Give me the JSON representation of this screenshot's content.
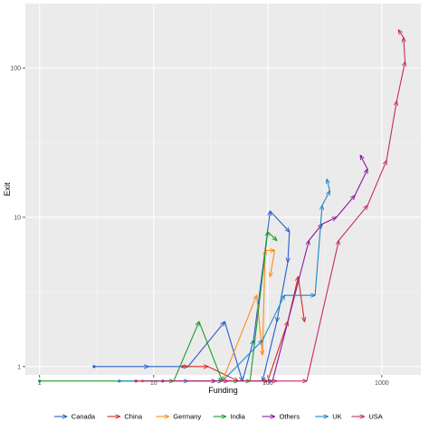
{
  "chart_data": {
    "type": "line",
    "xlabel": "Funding",
    "ylabel": "Exit",
    "xscale": "log10",
    "yscale": "log10",
    "xlim": [
      0.75,
      2200
    ],
    "ylim": [
      0.88,
      270
    ],
    "x_ticks": [
      {
        "value": 1,
        "label": "1"
      },
      {
        "value": 10,
        "label": "10"
      },
      {
        "value": 100,
        "label": "100"
      },
      {
        "value": 1000,
        "label": "1000"
      }
    ],
    "y_ticks": [
      {
        "value": 1,
        "label": "1"
      },
      {
        "value": 10,
        "label": "10"
      },
      {
        "value": 100,
        "label": "100"
      }
    ],
    "grid": true,
    "legend_position": "bottom",
    "series": [
      {
        "name": "Canada",
        "color": "#2b5ec7",
        "points": [
          [
            3,
            1
          ],
          [
            9,
            1
          ],
          [
            20,
            1
          ],
          [
            42,
            2
          ],
          [
            60,
            0.8
          ],
          [
            75,
            1.5
          ],
          [
            105,
            11
          ],
          [
            155,
            8
          ],
          [
            150,
            5
          ],
          [
            120,
            2
          ],
          [
            90,
            0.8
          ]
        ]
      },
      {
        "name": "China",
        "color": "#d52b1e",
        "points": [
          [
            18,
            1
          ],
          [
            30,
            1
          ],
          [
            55,
            0.8
          ],
          [
            100,
            0.8
          ],
          [
            150,
            2
          ],
          [
            185,
            4
          ],
          [
            210,
            2
          ]
        ]
      },
      {
        "name": "Germany",
        "color": "#ff8c1a",
        "points": [
          [
            8,
            0.8
          ],
          [
            40,
            0.8
          ],
          [
            80,
            3
          ],
          [
            90,
            1.2
          ],
          [
            95,
            6
          ],
          [
            115,
            6
          ],
          [
            105,
            4
          ]
        ]
      },
      {
        "name": "India",
        "color": "#1a9e2a",
        "points": [
          [
            1,
            0.8
          ],
          [
            15,
            0.8
          ],
          [
            25,
            2
          ],
          [
            40,
            0.8
          ],
          [
            55,
            0.8
          ],
          [
            70,
            0.8
          ],
          [
            100,
            8
          ],
          [
            120,
            7
          ]
        ]
      },
      {
        "name": "Others",
        "color": "#8a17a5",
        "points": [
          [
            12,
            0.8
          ],
          [
            35,
            0.8
          ],
          [
            110,
            0.8
          ],
          [
            230,
            7
          ],
          [
            300,
            9
          ],
          [
            400,
            10
          ],
          [
            580,
            14
          ],
          [
            750,
            21
          ],
          [
            650,
            26
          ]
        ]
      },
      {
        "name": "UK",
        "color": "#1a87c7",
        "points": [
          [
            5,
            0.8
          ],
          [
            20,
            0.8
          ],
          [
            40,
            0.8
          ],
          [
            90,
            1.5
          ],
          [
            140,
            3
          ],
          [
            260,
            3
          ],
          [
            300,
            12
          ],
          [
            350,
            15
          ],
          [
            330,
            18
          ]
        ]
      },
      {
        "name": "USA",
        "color": "#c7286b",
        "points": [
          [
            7,
            0.8
          ],
          [
            45,
            0.8
          ],
          [
            120,
            0.8
          ],
          [
            220,
            0.8
          ],
          [
            420,
            7
          ],
          [
            750,
            12
          ],
          [
            1100,
            24
          ],
          [
            1350,
            60
          ],
          [
            1600,
            110
          ],
          [
            1550,
            160
          ],
          [
            1400,
            180
          ]
        ]
      }
    ]
  }
}
